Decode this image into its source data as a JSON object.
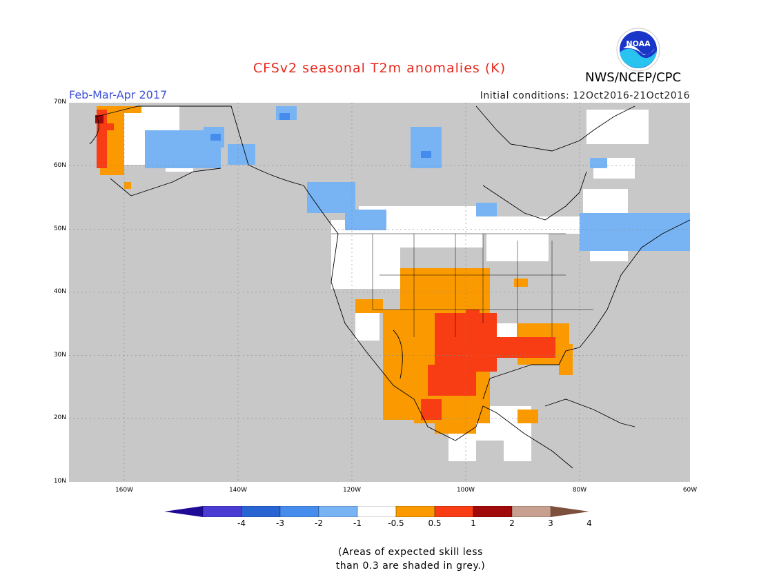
{
  "title": "CFSv2 seasonal T2m anomalies (K)",
  "period": "Feb-Mar-Apr 2017",
  "initial_conditions": "Initial conditions: 12Oct2016-21Oct2016",
  "agency": "NWS/NCEP/CPC",
  "logo_text": "NOAA",
  "colors": {
    "title": "#e8281e",
    "period": "#3c50d8",
    "land_grey": "#c8c8c8",
    "ocean_grey": "#c8c8c8"
  },
  "map": {
    "lat_labels": [
      "70N",
      "60N",
      "50N",
      "40N",
      "30N",
      "20N",
      "10N"
    ],
    "lon_labels": [
      "160W",
      "140W",
      "120W",
      "100W",
      "80W",
      "60W"
    ],
    "lat_range": [
      10,
      70
    ],
    "lon_range": [
      -172,
      -60
    ]
  },
  "colorbar": {
    "labels": [
      "-4",
      "-3",
      "-2",
      "-1",
      "-0.5",
      "0.5",
      "1",
      "2",
      "3",
      "4"
    ],
    "colors": [
      "#1e0a96",
      "#4a3cd2",
      "#2864d2",
      "#468cec",
      "#78b4f4",
      "#ffffff",
      "#fa9a00",
      "#f83c14",
      "#a00a0a",
      "#c8a090",
      "#7c503c"
    ]
  },
  "note": [
    "(Areas of expected skill less",
    "than 0.3 are shaded in grey.)"
  ]
}
